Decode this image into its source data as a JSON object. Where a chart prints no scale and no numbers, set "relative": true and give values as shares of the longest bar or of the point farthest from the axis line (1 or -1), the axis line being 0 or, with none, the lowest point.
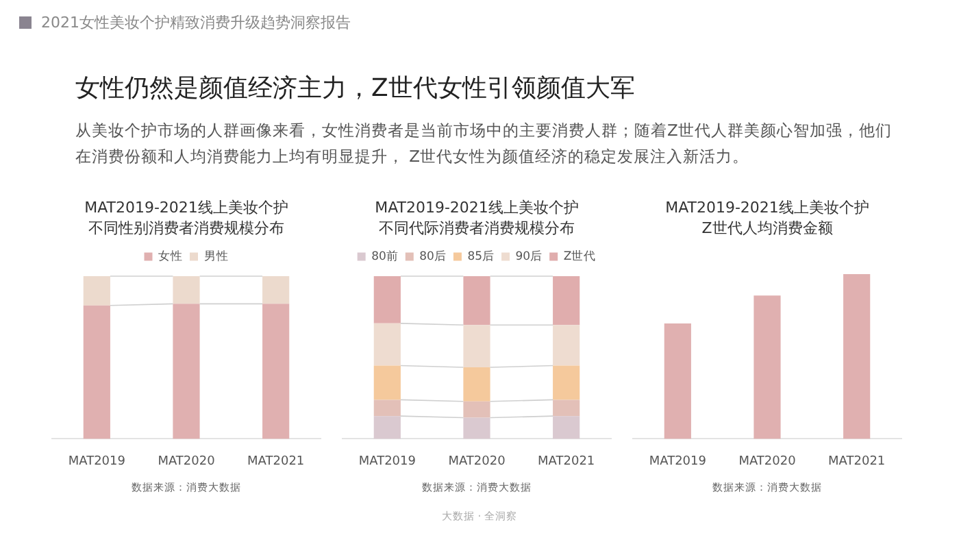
{
  "chart_data": [
    {
      "type": "other",
      "title": "女性仍然是颜值经济主力，Z世代女性引领颜值大军",
      "subtitle": "从美妆个护市场的人群画像来看，女性消费者是当前市场中的主要消费人群；随着Z世代人群美颜心智加强，他们在消费份额和人均消费能力上均有明显提升，  Z世代女性为颜值经济的稳定发展注入新活力。",
      "annotations": [
        "2021女性美妆个护精致消费升级趋势洞察报告",
        "大数据 · 全洞察"
      ]
    },
    {
      "type": "bar",
      "title": "MAT2019-2021线上美妆个护不同性别消费者消费规模分布",
      "categories": [
        "MAT2019",
        "MAT2020",
        "MAT2021"
      ],
      "relative": true,
      "stacked": true,
      "legend": "top",
      "series": [
        {
          "name": "女性",
          "color": "#e0b0b0",
          "values": [
            0.82,
            0.83,
            0.83
          ]
        },
        {
          "name": "男性",
          "color": "#ecdacd",
          "values": [
            0.18,
            0.17,
            0.17
          ]
        }
      ],
      "annotations": [
        "数据来源：消费大数据"
      ]
    },
    {
      "type": "bar",
      "title": "MAT2019-2021线上美妆个护不同代际消费者消费规模分布",
      "categories": [
        "MAT2019",
        "MAT2020",
        "MAT2021"
      ],
      "relative": true,
      "stacked": true,
      "legend": "top",
      "series": [
        {
          "name": "80前",
          "color": "#dac9d0",
          "values": [
            0.14,
            0.13,
            0.14
          ]
        },
        {
          "name": "80后",
          "color": "#e3c0b8",
          "values": [
            0.1,
            0.1,
            0.1
          ]
        },
        {
          "name": "85后",
          "color": "#f5c99c",
          "values": [
            0.21,
            0.21,
            0.21
          ]
        },
        {
          "name": "90后",
          "color": "#eedcd0",
          "values": [
            0.26,
            0.26,
            0.25
          ]
        },
        {
          "name": "Z世代",
          "color": "#e0adad",
          "values": [
            0.29,
            0.3,
            0.3
          ]
        }
      ],
      "annotations": [
        "数据来源：消费大数据"
      ]
    },
    {
      "type": "bar",
      "title": "MAT2019-2021线上美妆个护Z世代人均消费金额",
      "categories": [
        "MAT2019",
        "MAT2020",
        "MAT2021"
      ],
      "relative": true,
      "color": "#e0b0b0",
      "values": [
        0.7,
        0.87,
        1
      ],
      "annotations": [
        "数据来源：消费大数据"
      ]
    }
  ]
}
